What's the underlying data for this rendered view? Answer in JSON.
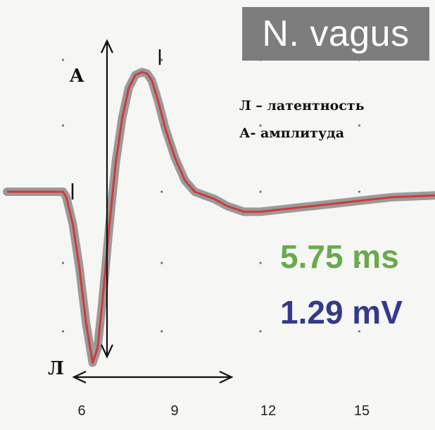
{
  "title": "N. vagus",
  "labels": {
    "A": "A",
    "L": "Л"
  },
  "legend": {
    "line1": "Л – латентность",
    "line2": "А- амплитуда"
  },
  "measurements": {
    "latency": "5.75 ms",
    "amplitude": "1.29 mV"
  },
  "colors": {
    "trace": "#d03a3a",
    "envelope": "#8a8a8a",
    "latency_text": "#6aaa4d",
    "amplitude_text": "#333a8a",
    "title_bg": "#7d7d7d"
  },
  "chart_data": {
    "type": "line",
    "xlim": [
      4.3,
      17.3
    ],
    "ylim": [
      -1.0,
      1.0
    ],
    "x_ticks": [
      6,
      9,
      12,
      15
    ],
    "x_tick_labels": [
      "6",
      "9",
      "12",
      "15"
    ],
    "grid": "dots",
    "series": [
      {
        "x": [
          4.3,
          5.0,
          6.0,
          6.1,
          6.3,
          6.5,
          6.7,
          6.9,
          7.05,
          7.2,
          7.4,
          7.6,
          7.8,
          8.0,
          8.2,
          8.4,
          8.55,
          8.7,
          8.9,
          9.1,
          9.4,
          9.7,
          10.0,
          10.3,
          10.6,
          11.0,
          11.5,
          12.0,
          12.5,
          13.0,
          14.0,
          15.0,
          16.0,
          17.3
        ],
        "y": [
          0.0,
          0.0,
          0.0,
          -0.03,
          -0.18,
          -0.42,
          -0.72,
          -0.94,
          -0.86,
          -0.6,
          -0.2,
          0.2,
          0.52,
          0.73,
          0.82,
          0.84,
          0.83,
          0.78,
          0.63,
          0.45,
          0.24,
          0.08,
          0.0,
          -0.02,
          -0.04,
          -0.08,
          -0.11,
          -0.11,
          -0.1,
          -0.09,
          -0.07,
          -0.05,
          -0.03,
          -0.02
        ]
      }
    ]
  }
}
